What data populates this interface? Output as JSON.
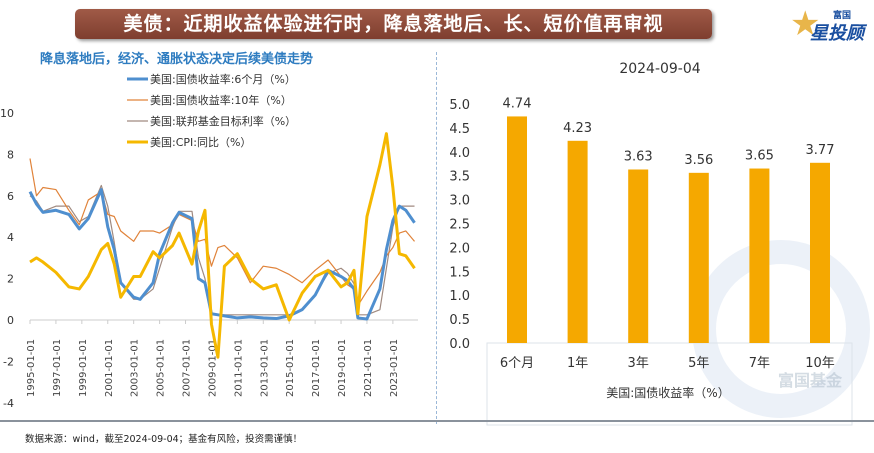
{
  "header": {
    "title": "美债：近期收益体验进行时，降息落地后、长、短价值再审视",
    "logo_small": "富国",
    "logo_big": "星投顾"
  },
  "watermark": "富国基金",
  "footer": "数据来源：wind，截至2024-09-04；基金有风险，投资需谨慎！",
  "chart_data": [
    {
      "type": "line",
      "title": "降息落地后，经济、通胀状态决定后续美债走势",
      "ylim": [
        -4,
        10
      ],
      "yticks": [
        10,
        8,
        6,
        4,
        2,
        0,
        -2,
        -4
      ],
      "xticks": [
        "1995-01-01",
        "1997-01-01",
        "1999-01-01",
        "2001-01-01",
        "2003-01-01",
        "2005-01-01",
        "2007-01-01",
        "2009-01-01",
        "2011-01-01",
        "2013-01-01",
        "2015-01-01",
        "2017-01-01",
        "2019-01-01",
        "2021-01-01",
        "2023-01-01"
      ],
      "legend": "top-left",
      "x": [
        1995,
        1995.5,
        1996,
        1997,
        1998,
        1998.8,
        1999.5,
        2000.5,
        2001,
        2001.5,
        2002,
        2003,
        2003.5,
        2004.5,
        2005,
        2006,
        2006.5,
        2007.5,
        2008,
        2008.5,
        2009,
        2009.5,
        2010,
        2011,
        2012,
        2013,
        2014,
        2015,
        2016,
        2017,
        2018,
        2019,
        2019.5,
        2020,
        2020.3,
        2021,
        2022,
        2022.5,
        2023,
        2023.5,
        2024,
        2024.67
      ],
      "series": [
        {
          "name": "美国:国债收益率:6个月（%）",
          "color": "#4f8fcf",
          "values": [
            6.2,
            5.6,
            5.2,
            5.3,
            5.1,
            4.4,
            4.9,
            6.3,
            4.5,
            3.4,
            1.8,
            1.1,
            1.0,
            1.8,
            3.2,
            4.7,
            5.2,
            4.9,
            2.0,
            1.8,
            0.3,
            0.25,
            0.2,
            0.1,
            0.15,
            0.1,
            0.07,
            0.2,
            0.5,
            1.2,
            2.4,
            2.1,
            1.9,
            1.5,
            0.1,
            0.05,
            1.5,
            3.4,
            4.8,
            5.5,
            5.3,
            4.7
          ]
        },
        {
          "name": "美国:国债收益率:10年（%）",
          "color": "#e0833a",
          "values": [
            7.8,
            6.0,
            6.4,
            6.3,
            5.3,
            4.6,
            5.8,
            6.2,
            5.1,
            5.0,
            4.3,
            3.8,
            4.3,
            4.3,
            4.2,
            4.6,
            5.1,
            4.8,
            3.8,
            3.9,
            2.6,
            3.5,
            3.6,
            3.0,
            1.8,
            2.6,
            2.5,
            2.2,
            1.8,
            2.4,
            2.9,
            2.1,
            1.7,
            1.5,
            0.7,
            1.4,
            2.3,
            3.1,
            3.5,
            4.2,
            4.3,
            3.8
          ]
        },
        {
          "name": "美国:联邦基金目标利率（%）",
          "color": "#a08a80",
          "values": [
            6.0,
            5.75,
            5.25,
            5.5,
            5.5,
            4.75,
            5.0,
            6.5,
            5.5,
            3.75,
            1.75,
            1.0,
            1.0,
            1.5,
            2.5,
            4.5,
            5.25,
            5.25,
            3.0,
            2.0,
            0.25,
            0.25,
            0.25,
            0.25,
            0.25,
            0.25,
            0.25,
            0.25,
            0.5,
            1.25,
            2.25,
            2.5,
            2.25,
            1.75,
            0.25,
            0.25,
            0.5,
            2.5,
            4.5,
            5.5,
            5.5,
            5.5
          ]
        },
        {
          "name": "美国:CPI:同比（%）",
          "color": "#f5b800",
          "values": [
            2.8,
            3.0,
            2.8,
            2.3,
            1.6,
            1.5,
            2.1,
            3.4,
            3.7,
            2.7,
            1.1,
            2.1,
            2.1,
            3.3,
            3.0,
            3.6,
            4.2,
            2.7,
            4.3,
            5.3,
            -0.2,
            -1.8,
            2.6,
            3.2,
            2.0,
            1.5,
            1.7,
            0.0,
            1.3,
            2.1,
            2.4,
            1.6,
            1.8,
            2.4,
            0.3,
            5.0,
            7.5,
            9.0,
            6.4,
            3.2,
            3.1,
            2.5
          ]
        }
      ]
    },
    {
      "type": "bar",
      "title": "2024-09-04",
      "xlabel": "美国:国债收益率（%）",
      "categories": [
        "6个月",
        "1年",
        "3年",
        "5年",
        "7年",
        "10年"
      ],
      "values": [
        4.74,
        4.23,
        3.63,
        3.56,
        3.65,
        3.77
      ],
      "ylim": [
        0,
        5
      ],
      "yticks": [
        "5.0",
        "4.5",
        "4.0",
        "3.5",
        "3.0",
        "2.5",
        "2.0",
        "1.5",
        "1.0",
        "0.5",
        "0.0"
      ],
      "color": "#f5a800"
    }
  ]
}
